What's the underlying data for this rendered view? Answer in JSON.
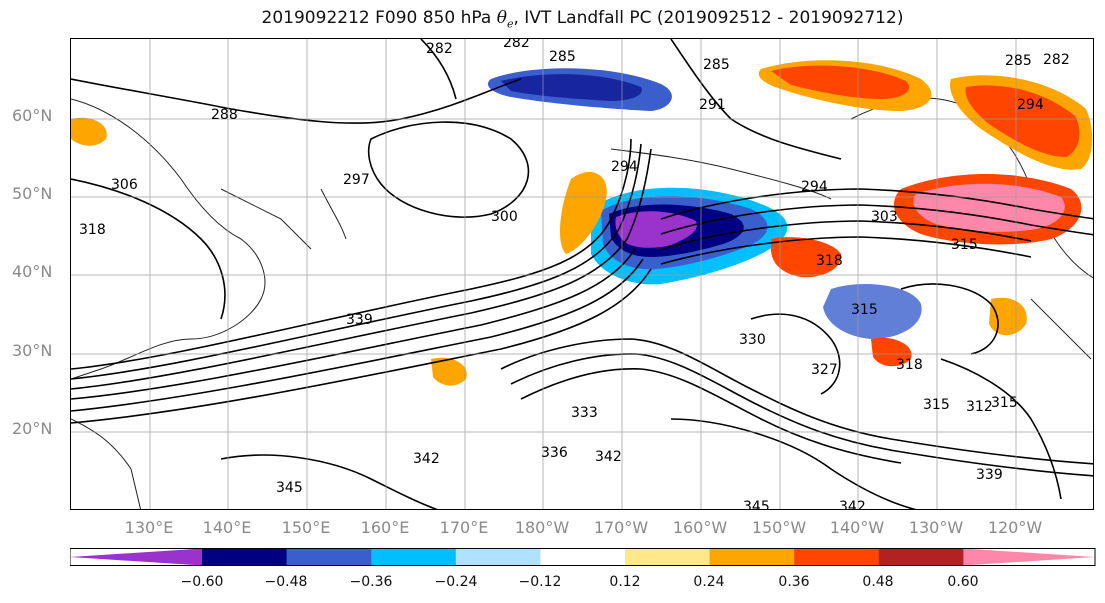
{
  "title": {
    "prefix": "2019092212 F090 850 hPa ",
    "symbol": "θ",
    "subscript": "e",
    "suffix": ", IVT Landfall PC (2019092512 - 2019092712)"
  },
  "map": {
    "projection": "plate-carree",
    "lon_range": [
      120,
      250
    ],
    "lat_range": [
      10,
      70
    ],
    "gridlines": true,
    "lat_labels": [
      "60°N",
      "50°N",
      "40°N",
      "30°N",
      "20°N"
    ],
    "lon_labels": [
      "130°E",
      "140°E",
      "150°E",
      "160°E",
      "170°E",
      "180°W",
      "170°W",
      "160°W",
      "150°W",
      "140°W",
      "130°W",
      "120°W"
    ],
    "contour_labels": [
      "282",
      "282",
      "285",
      "285",
      "291",
      "288",
      "297",
      "294",
      "285",
      "294",
      "282",
      "300",
      "294",
      "303",
      "306",
      "318",
      "318",
      "315",
      "315",
      "339",
      "330",
      "327",
      "318",
      "315",
      "312",
      "315",
      "339",
      "336",
      "342",
      "342",
      "345",
      "345",
      "342",
      "333"
    ]
  },
  "colorbar": {
    "orientation": "horizontal",
    "extend": "both",
    "colors": [
      "#9933cc",
      "#000080",
      "#3a5fcd",
      "#00bfff",
      "#b0e2ff",
      "#ffffff",
      "#ffe88a",
      "#ffa500",
      "#ff4500",
      "#b22222",
      "#ff88aa"
    ],
    "tick_labels": [
      "−0.60",
      "−0.48",
      "−0.36",
      "−0.24",
      "−0.12",
      "0.12",
      "0.24",
      "0.36",
      "0.48",
      "0.60"
    ]
  }
}
